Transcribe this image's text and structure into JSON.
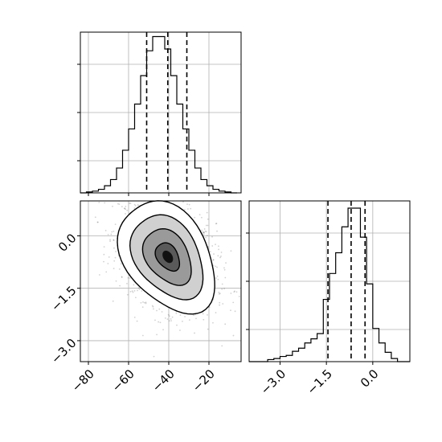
{
  "chart_data": {
    "type": "corner",
    "colors": {
      "line": "#000000",
      "grid": "#b0b0b0",
      "points": "#000000",
      "background": "#ffffff"
    },
    "grid": true,
    "params": [
      {
        "xlim": [
          -84,
          -4
        ],
        "ticks": [
          -80,
          -60,
          -40,
          -20
        ],
        "tick_labels": [
          "−80",
          "−60",
          "−40",
          "−20"
        ],
        "quantiles": [
          -51,
          -40.5,
          -31
        ],
        "hist": {
          "bin_edges": [
            -84,
            -81,
            -78,
            -75,
            -72,
            -69,
            -66,
            -63,
            -60,
            -57,
            -54,
            -51,
            -48,
            -45,
            -42,
            -39,
            -36,
            -33,
            -30,
            -27,
            -24,
            -21,
            -18,
            -15,
            -12,
            -9,
            -6
          ],
          "counts": [
            0,
            1,
            2,
            4,
            8,
            15,
            28,
            48,
            72,
            100,
            132,
            160,
            176,
            176,
            162,
            132,
            100,
            72,
            48,
            28,
            15,
            8,
            4,
            2,
            1,
            0
          ],
          "ymax": 181
        }
      },
      {
        "xlim": [
          -4.0,
          1.2
        ],
        "ticks": [
          -3.0,
          -1.5,
          0.0
        ],
        "tick_labels": [
          "−3.0",
          "−1.5",
          "0.0"
        ],
        "quantiles": [
          -1.45,
          -0.7,
          -0.25
        ],
        "hist": {
          "bin_edges": [
            -4.0,
            -3.8,
            -3.6,
            -3.4,
            -3.2,
            -3.0,
            -2.8,
            -2.6,
            -2.4,
            -2.2,
            -2.0,
            -1.8,
            -1.6,
            -1.4,
            -1.2,
            -1.0,
            -0.8,
            -0.6,
            -0.4,
            -0.2,
            0.0,
            0.2,
            0.4,
            0.6,
            0.8,
            1.0,
            1.2
          ],
          "counts": [
            0,
            0,
            0,
            2,
            3,
            5,
            6,
            10,
            13,
            18,
            22,
            27,
            60,
            85,
            105,
            130,
            148,
            148,
            120,
            75,
            32,
            18,
            9,
            3,
            0,
            0
          ],
          "ymax": 155
        }
      }
    ],
    "joint": {
      "x_param": 0,
      "y_param": 1,
      "ylim": [
        -3.6,
        1.0
      ],
      "y_ticks": [
        0.0,
        -1.5,
        -3.0
      ],
      "y_tick_labels": [
        "0.0",
        "−1.5",
        "−3.0"
      ],
      "mean": [
        -40.5,
        -0.6
      ],
      "sd": [
        12,
        0.8
      ],
      "corr": -0.35,
      "contour_levels_sigma": [
        0.5,
        1.0,
        1.5,
        2.0
      ]
    }
  }
}
